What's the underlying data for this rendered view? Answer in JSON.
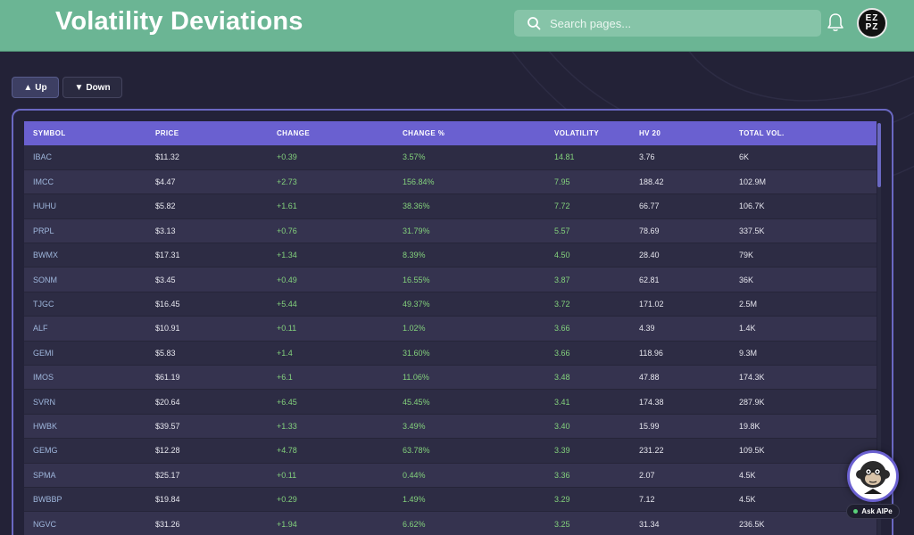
{
  "header": {
    "title": "Volatility Deviations",
    "search_placeholder": "Search pages...",
    "search_value": "",
    "avatar_initials_top": "EZ",
    "avatar_initials_bottom": "PZ",
    "bg_color": "#6bb594"
  },
  "controls": {
    "up_label": "Up",
    "down_label": "Down"
  },
  "table": {
    "columns": [
      "SYMBOL",
      "PRICE",
      "CHANGE",
      "CHANGE %",
      "VOLATILITY",
      "HV 20",
      "TOTAL VOL."
    ],
    "rows": [
      {
        "symbol": "IBAC",
        "price": "$11.32",
        "change": "+0.39",
        "change_pct": "3.57%",
        "volatility": "14.81",
        "hv20": "3.76",
        "total_vol": "6K"
      },
      {
        "symbol": "IMCC",
        "price": "$4.47",
        "change": "+2.73",
        "change_pct": "156.84%",
        "volatility": "7.95",
        "hv20": "188.42",
        "total_vol": "102.9M"
      },
      {
        "symbol": "HUHU",
        "price": "$5.82",
        "change": "+1.61",
        "change_pct": "38.36%",
        "volatility": "7.72",
        "hv20": "66.77",
        "total_vol": "106.7K"
      },
      {
        "symbol": "PRPL",
        "price": "$3.13",
        "change": "+0.76",
        "change_pct": "31.79%",
        "volatility": "5.57",
        "hv20": "78.69",
        "total_vol": "337.5K"
      },
      {
        "symbol": "BWMX",
        "price": "$17.31",
        "change": "+1.34",
        "change_pct": "8.39%",
        "volatility": "4.50",
        "hv20": "28.40",
        "total_vol": "79K"
      },
      {
        "symbol": "SONM",
        "price": "$3.45",
        "change": "+0.49",
        "change_pct": "16.55%",
        "volatility": "3.87",
        "hv20": "62.81",
        "total_vol": "36K"
      },
      {
        "symbol": "TJGC",
        "price": "$16.45",
        "change": "+5.44",
        "change_pct": "49.37%",
        "volatility": "3.72",
        "hv20": "171.02",
        "total_vol": "2.5M"
      },
      {
        "symbol": "ALF",
        "price": "$10.91",
        "change": "+0.11",
        "change_pct": "1.02%",
        "volatility": "3.66",
        "hv20": "4.39",
        "total_vol": "1.4K"
      },
      {
        "symbol": "GEMI",
        "price": "$5.83",
        "change": "+1.4",
        "change_pct": "31.60%",
        "volatility": "3.66",
        "hv20": "118.96",
        "total_vol": "9.3M"
      },
      {
        "symbol": "IMOS",
        "price": "$61.19",
        "change": "+6.1",
        "change_pct": "11.06%",
        "volatility": "3.48",
        "hv20": "47.88",
        "total_vol": "174.3K"
      },
      {
        "symbol": "SVRN",
        "price": "$20.64",
        "change": "+6.45",
        "change_pct": "45.45%",
        "volatility": "3.41",
        "hv20": "174.38",
        "total_vol": "287.9K"
      },
      {
        "symbol": "HWBK",
        "price": "$39.57",
        "change": "+1.33",
        "change_pct": "3.49%",
        "volatility": "3.40",
        "hv20": "15.99",
        "total_vol": "19.8K"
      },
      {
        "symbol": "GEMG",
        "price": "$12.28",
        "change": "+4.78",
        "change_pct": "63.78%",
        "volatility": "3.39",
        "hv20": "231.22",
        "total_vol": "109.5K"
      },
      {
        "symbol": "SPMA",
        "price": "$25.17",
        "change": "+0.11",
        "change_pct": "0.44%",
        "volatility": "3.36",
        "hv20": "2.07",
        "total_vol": "4.5K"
      },
      {
        "symbol": "BWBBP",
        "price": "$19.84",
        "change": "+0.29",
        "change_pct": "1.49%",
        "volatility": "3.29",
        "hv20": "7.12",
        "total_vol": "4.5K"
      },
      {
        "symbol": "NGVC",
        "price": "$31.26",
        "change": "+1.94",
        "change_pct": "6.62%",
        "volatility": "3.25",
        "hv20": "31.34",
        "total_vol": "236.5K"
      }
    ]
  },
  "assistant": {
    "label": "Ask AIPe",
    "status_color": "#5ad27a"
  },
  "colors": {
    "accent": "#6a60d0",
    "positive": "#83d17c",
    "symbol": "#9fb7dd",
    "background": "#232237"
  }
}
